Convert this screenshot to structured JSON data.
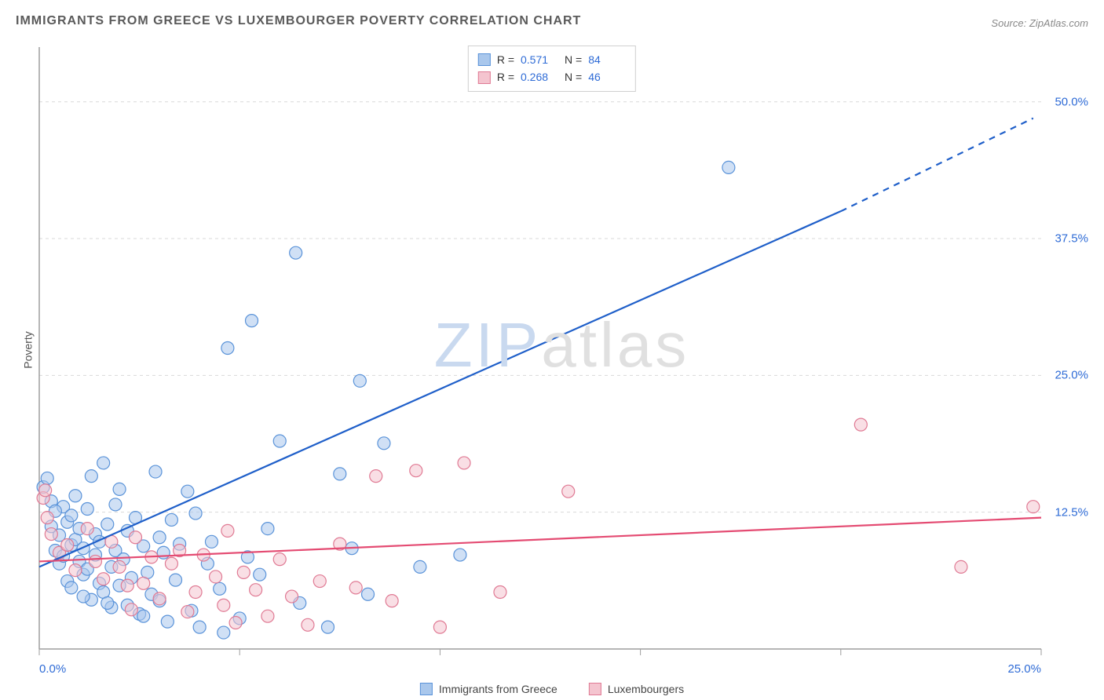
{
  "title": "IMMIGRANTS FROM GREECE VS LUXEMBOURGER POVERTY CORRELATION CHART",
  "source_label": "Source:",
  "source_value": "ZipAtlas.com",
  "watermark": {
    "part1": "ZIP",
    "part2": "atlas"
  },
  "y_axis_label": "Poverty",
  "legend_top": {
    "series": [
      {
        "swatch_fill": "#a9c7ec",
        "swatch_border": "#5a93d9",
        "r_label": "R =",
        "r_value": "0.571",
        "n_label": "N =",
        "n_value": "84"
      },
      {
        "swatch_fill": "#f4c4cf",
        "swatch_border": "#e07a94",
        "r_label": "R =",
        "r_value": "0.268",
        "n_label": "N =",
        "n_value": "46"
      }
    ]
  },
  "legend_bottom": {
    "items": [
      {
        "swatch_fill": "#a9c7ec",
        "swatch_border": "#5a93d9",
        "label": "Immigrants from Greece"
      },
      {
        "swatch_fill": "#f4c4cf",
        "swatch_border": "#e07a94",
        "label": "Luxembourgers"
      }
    ]
  },
  "chart": {
    "type": "scatter",
    "background_color": "#ffffff",
    "grid_color": "#d9d9d9",
    "axis_color": "#9e9e9e",
    "xlim": [
      0,
      25
    ],
    "ylim": [
      0,
      55
    ],
    "x_ticks": [
      0,
      5,
      10,
      15,
      20,
      25
    ],
    "x_tick_labels": [
      "0.0%",
      "",
      "",
      "",
      "",
      "25.0%"
    ],
    "y_gridlines": [
      12.5,
      25,
      37.5,
      50
    ],
    "y_tick_labels": [
      "12.5%",
      "25.0%",
      "37.5%",
      "50.0%"
    ],
    "marker_radius": 8,
    "marker_opacity": 0.55,
    "series": [
      {
        "name": "greece",
        "fill": "#a9c7ec",
        "stroke": "#5a93d9",
        "trend": {
          "x1": 0,
          "y1": 7.5,
          "x2": 20,
          "y2": 40,
          "color": "#1f5fc9",
          "width": 2.2,
          "dash_from_x": 20,
          "dash_to_x": 24.8,
          "y_at_dash_end": 48.5
        },
        "points": [
          [
            0.1,
            14.8
          ],
          [
            0.2,
            15.6
          ],
          [
            0.3,
            13.5
          ],
          [
            0.3,
            11.2
          ],
          [
            0.4,
            9.0
          ],
          [
            0.5,
            10.4
          ],
          [
            0.5,
            7.8
          ],
          [
            0.6,
            13.0
          ],
          [
            0.6,
            8.5
          ],
          [
            0.7,
            6.2
          ],
          [
            0.7,
            11.6
          ],
          [
            0.8,
            9.5
          ],
          [
            0.8,
            12.2
          ],
          [
            0.8,
            5.6
          ],
          [
            0.9,
            10.0
          ],
          [
            0.9,
            14.0
          ],
          [
            1.0,
            8.0
          ],
          [
            1.0,
            11.0
          ],
          [
            1.1,
            6.8
          ],
          [
            1.1,
            9.2
          ],
          [
            1.2,
            12.8
          ],
          [
            1.2,
            7.3
          ],
          [
            1.3,
            15.8
          ],
          [
            1.3,
            4.5
          ],
          [
            1.4,
            10.5
          ],
          [
            1.4,
            8.6
          ],
          [
            1.5,
            6.0
          ],
          [
            1.5,
            9.8
          ],
          [
            1.6,
            17.0
          ],
          [
            1.6,
            5.2
          ],
          [
            1.7,
            11.4
          ],
          [
            1.8,
            7.5
          ],
          [
            1.8,
            3.8
          ],
          [
            1.9,
            9.0
          ],
          [
            1.9,
            13.2
          ],
          [
            2.0,
            5.8
          ],
          [
            2.1,
            8.2
          ],
          [
            2.2,
            10.8
          ],
          [
            2.2,
            4.0
          ],
          [
            2.3,
            6.5
          ],
          [
            2.4,
            12.0
          ],
          [
            2.5,
            3.2
          ],
          [
            2.6,
            9.4
          ],
          [
            2.7,
            7.0
          ],
          [
            2.8,
            5.0
          ],
          [
            2.9,
            16.2
          ],
          [
            3.0,
            10.2
          ],
          [
            3.0,
            4.4
          ],
          [
            3.1,
            8.8
          ],
          [
            3.2,
            2.5
          ],
          [
            3.3,
            11.8
          ],
          [
            3.4,
            6.3
          ],
          [
            3.5,
            9.6
          ],
          [
            3.7,
            14.4
          ],
          [
            3.8,
            3.5
          ],
          [
            4.0,
            2.0
          ],
          [
            4.2,
            7.8
          ],
          [
            4.3,
            9.8
          ],
          [
            4.5,
            5.5
          ],
          [
            4.6,
            1.5
          ],
          [
            4.7,
            27.5
          ],
          [
            5.0,
            2.8
          ],
          [
            5.2,
            8.4
          ],
          [
            5.3,
            30.0
          ],
          [
            5.5,
            6.8
          ],
          [
            5.7,
            11.0
          ],
          [
            6.0,
            19.0
          ],
          [
            6.4,
            36.2
          ],
          [
            6.5,
            4.2
          ],
          [
            7.2,
            2.0
          ],
          [
            7.5,
            16.0
          ],
          [
            7.8,
            9.2
          ],
          [
            8.0,
            24.5
          ],
          [
            8.2,
            5.0
          ],
          [
            8.6,
            18.8
          ],
          [
            9.5,
            7.5
          ],
          [
            10.5,
            8.6
          ],
          [
            17.2,
            44.0
          ],
          [
            1.1,
            4.8
          ],
          [
            2.0,
            14.6
          ],
          [
            2.6,
            3.0
          ],
          [
            3.9,
            12.4
          ],
          [
            0.4,
            12.6
          ],
          [
            1.7,
            4.2
          ]
        ]
      },
      {
        "name": "luxembourgers",
        "fill": "#f4c4cf",
        "stroke": "#e07a94",
        "trend": {
          "x1": 0,
          "y1": 8.0,
          "x2": 25,
          "y2": 12.0,
          "color": "#e44b72",
          "width": 2.2
        },
        "points": [
          [
            0.1,
            13.8
          ],
          [
            0.15,
            14.5
          ],
          [
            0.2,
            12.0
          ],
          [
            0.3,
            10.5
          ],
          [
            0.5,
            8.8
          ],
          [
            0.7,
            9.5
          ],
          [
            0.9,
            7.2
          ],
          [
            1.2,
            11.0
          ],
          [
            1.4,
            8.0
          ],
          [
            1.6,
            6.4
          ],
          [
            1.8,
            9.8
          ],
          [
            2.0,
            7.5
          ],
          [
            2.2,
            5.8
          ],
          [
            2.4,
            10.2
          ],
          [
            2.6,
            6.0
          ],
          [
            2.8,
            8.4
          ],
          [
            3.0,
            4.6
          ],
          [
            3.3,
            7.8
          ],
          [
            3.5,
            9.0
          ],
          [
            3.7,
            3.4
          ],
          [
            3.9,
            5.2
          ],
          [
            4.1,
            8.6
          ],
          [
            4.4,
            6.6
          ],
          [
            4.6,
            4.0
          ],
          [
            4.9,
            2.4
          ],
          [
            5.1,
            7.0
          ],
          [
            5.4,
            5.4
          ],
          [
            5.7,
            3.0
          ],
          [
            6.0,
            8.2
          ],
          [
            6.3,
            4.8
          ],
          [
            6.7,
            2.2
          ],
          [
            7.0,
            6.2
          ],
          [
            7.5,
            9.6
          ],
          [
            7.9,
            5.6
          ],
          [
            8.4,
            15.8
          ],
          [
            8.8,
            4.4
          ],
          [
            9.4,
            16.3
          ],
          [
            10.0,
            2.0
          ],
          [
            10.6,
            17.0
          ],
          [
            11.5,
            5.2
          ],
          [
            13.2,
            14.4
          ],
          [
            20.5,
            20.5
          ],
          [
            23.0,
            7.5
          ],
          [
            24.8,
            13.0
          ],
          [
            2.3,
            3.6
          ],
          [
            4.7,
            10.8
          ]
        ]
      }
    ]
  }
}
